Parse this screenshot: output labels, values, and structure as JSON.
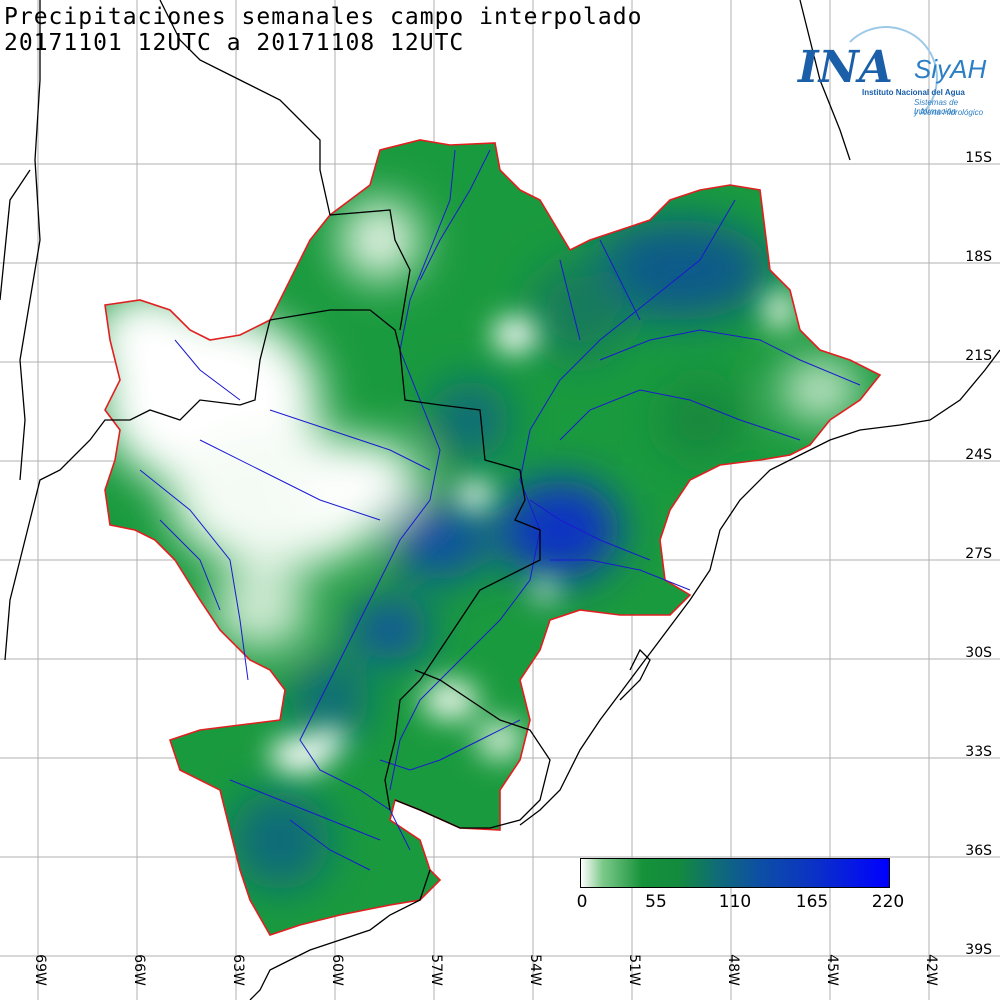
{
  "title": {
    "line1": "Precipitaciones semanales campo interpolado",
    "line2": "20171101 12UTC a 20171108 12UTC"
  },
  "logo": {
    "ina": "INA",
    "siyah": "SiyAH",
    "org": "Instituto Nacional del Agua",
    "sub1": "Sistemas de Información",
    "sub2": "y Alerta Hidrológico"
  },
  "colorbar": {
    "ticks": [
      "0",
      "55",
      "110",
      "165",
      "220"
    ],
    "colors": [
      "#ffffff",
      "#15923a",
      "#0f6a7a",
      "#0d4fa4",
      "#0000ff"
    ]
  },
  "latitudes": [
    "15S",
    "18S",
    "21S",
    "24S",
    "27S",
    "30S",
    "33S",
    "36S",
    "39S"
  ],
  "longitudes": [
    "69W",
    "66W",
    "63W",
    "60W",
    "57W",
    "54W",
    "51W",
    "48W",
    "45W",
    "42W"
  ],
  "colors": {
    "basin_outline": "#e02020",
    "rivers": "#1a1ad0",
    "borders": "#000000",
    "grid": "#b0b0b0"
  }
}
